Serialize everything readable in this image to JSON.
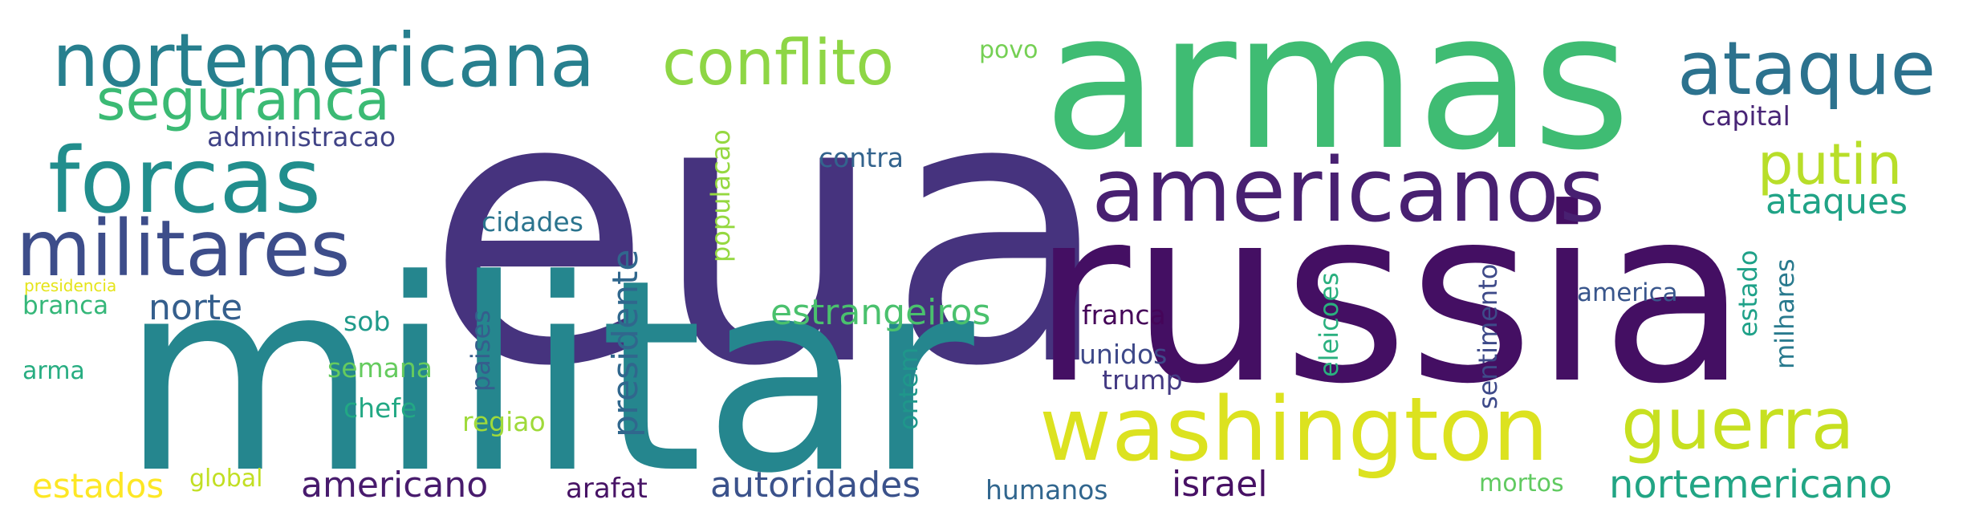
{
  "words": [
    {
      "text": "eua",
      "color": "#46337e"
    },
    {
      "text": "russia",
      "color": "#440f63"
    },
    {
      "text": "militar",
      "color": "#25868e"
    },
    {
      "text": "armas",
      "color": "#3fbc73"
    },
    {
      "text": "americanos",
      "color": "#482071"
    },
    {
      "text": "washington",
      "color": "#dce21f"
    },
    {
      "text": "militares",
      "color": "#3d4d8a"
    },
    {
      "text": "forcas",
      "color": "#218e8d"
    },
    {
      "text": "nortemericana",
      "color": "#277f8e"
    },
    {
      "text": "ataque",
      "color": "#2c728e"
    },
    {
      "text": "conflito",
      "color": "#8ed645"
    },
    {
      "text": "guerra",
      "color": "#c7e020"
    },
    {
      "text": "seguranca",
      "color": "#3bba74"
    },
    {
      "text": "putin",
      "color": "#b8de29"
    },
    {
      "text": "nortemericano",
      "color": "#21a584"
    },
    {
      "text": "autoridades",
      "color": "#3b528b"
    },
    {
      "text": "americano",
      "color": "#481b6d"
    },
    {
      "text": "estrangeiros",
      "color": "#4ac16d"
    },
    {
      "text": "ataques",
      "color": "#20a386"
    },
    {
      "text": "presidente",
      "color": "#30678d"
    },
    {
      "text": "norte",
      "color": "#355f8d"
    },
    {
      "text": "israel",
      "color": "#471164"
    },
    {
      "text": "estados",
      "color": "#fde725"
    },
    {
      "text": "arafat",
      "color": "#471365"
    },
    {
      "text": "humanos",
      "color": "#31668e"
    },
    {
      "text": "administracao",
      "color": "#414487"
    },
    {
      "text": "contra",
      "color": "#33638d"
    },
    {
      "text": "cidades",
      "color": "#2b748e"
    },
    {
      "text": "capital",
      "color": "#482576"
    },
    {
      "text": "franca",
      "color": "#450559"
    },
    {
      "text": "unidos",
      "color": "#3e4989"
    },
    {
      "text": "trump",
      "color": "#443a83"
    },
    {
      "text": "america",
      "color": "#39568c"
    },
    {
      "text": "branca",
      "color": "#35b779"
    },
    {
      "text": "sob",
      "color": "#1f9a8a"
    },
    {
      "text": "semana",
      "color": "#65cb5e"
    },
    {
      "text": "chefe",
      "color": "#22a884"
    },
    {
      "text": "regiao",
      "color": "#9fda3a"
    },
    {
      "text": "global",
      "color": "#c2df23"
    },
    {
      "text": "mortos",
      "color": "#60ca60"
    },
    {
      "text": "arma",
      "color": "#27ad81"
    },
    {
      "text": "povo",
      "color": "#75d054"
    },
    {
      "text": "presidencia",
      "color": "#e5e419"
    },
    {
      "text": "populacao",
      "color": "#95d840"
    },
    {
      "text": "paises",
      "color": "#355e8d"
    },
    {
      "text": "ontem",
      "color": "#1f978b"
    },
    {
      "text": "eleicoes",
      "color": "#2ab07f"
    },
    {
      "text": "sentimento",
      "color": "#3e4a89"
    },
    {
      "text": "estado",
      "color": "#1fa188"
    },
    {
      "text": "milhares",
      "color": "#297a8e"
    }
  ]
}
